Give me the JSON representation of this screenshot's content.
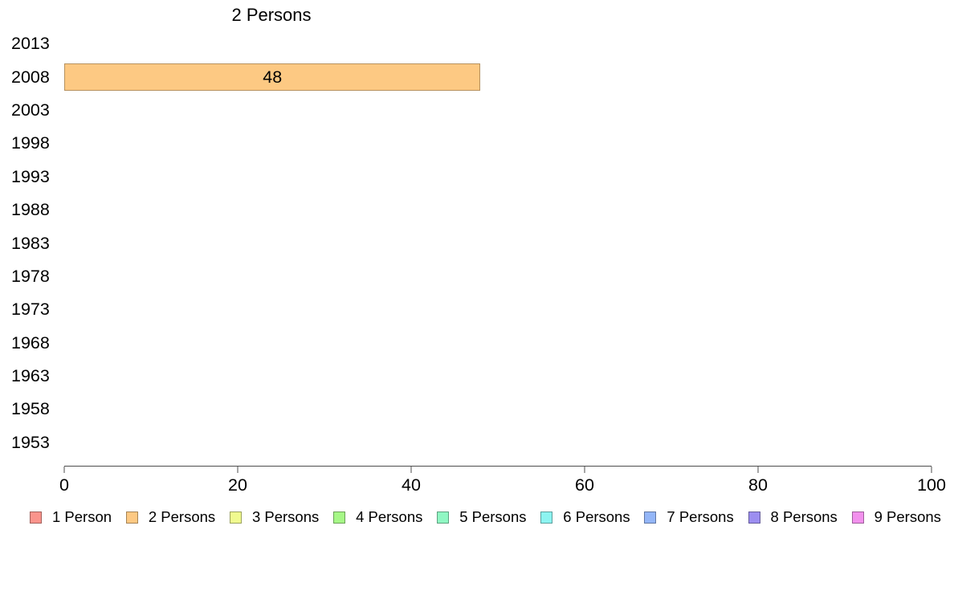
{
  "chart_data": {
    "type": "bar",
    "orientation": "horizontal",
    "title": "2 Persons",
    "categories": [
      "2013",
      "2008",
      "2003",
      "1998",
      "1993",
      "1988",
      "1983",
      "1978",
      "1973",
      "1968",
      "1963",
      "1958",
      "1953"
    ],
    "series": [
      {
        "name": "2 Persons",
        "color": "#FDC983",
        "values": [
          null,
          48,
          null,
          null,
          null,
          null,
          null,
          null,
          null,
          null,
          null,
          null,
          null
        ]
      }
    ],
    "bar_labels": [
      null,
      "48",
      null,
      null,
      null,
      null,
      null,
      null,
      null,
      null,
      null,
      null,
      null
    ],
    "xlabel": "",
    "ylabel": "",
    "xlim": [
      0,
      100
    ],
    "x_ticks": [
      "0",
      "20",
      "40",
      "60",
      "80",
      "100"
    ],
    "grid": false,
    "legend_position": "bottom",
    "legend": [
      {
        "label": "1 Person",
        "color": "#FA948C"
      },
      {
        "label": "2 Persons",
        "color": "#FDC983"
      },
      {
        "label": "3 Persons",
        "color": "#F0FA8F"
      },
      {
        "label": "4 Persons",
        "color": "#A6F787"
      },
      {
        "label": "5 Persons",
        "color": "#90F7C3"
      },
      {
        "label": "6 Persons",
        "color": "#8DF4F1"
      },
      {
        "label": "7 Persons",
        "color": "#94B6F7"
      },
      {
        "label": "8 Persons",
        "color": "#9C8EF0"
      },
      {
        "label": "9 Persons",
        "color": "#F291ED"
      }
    ]
  }
}
